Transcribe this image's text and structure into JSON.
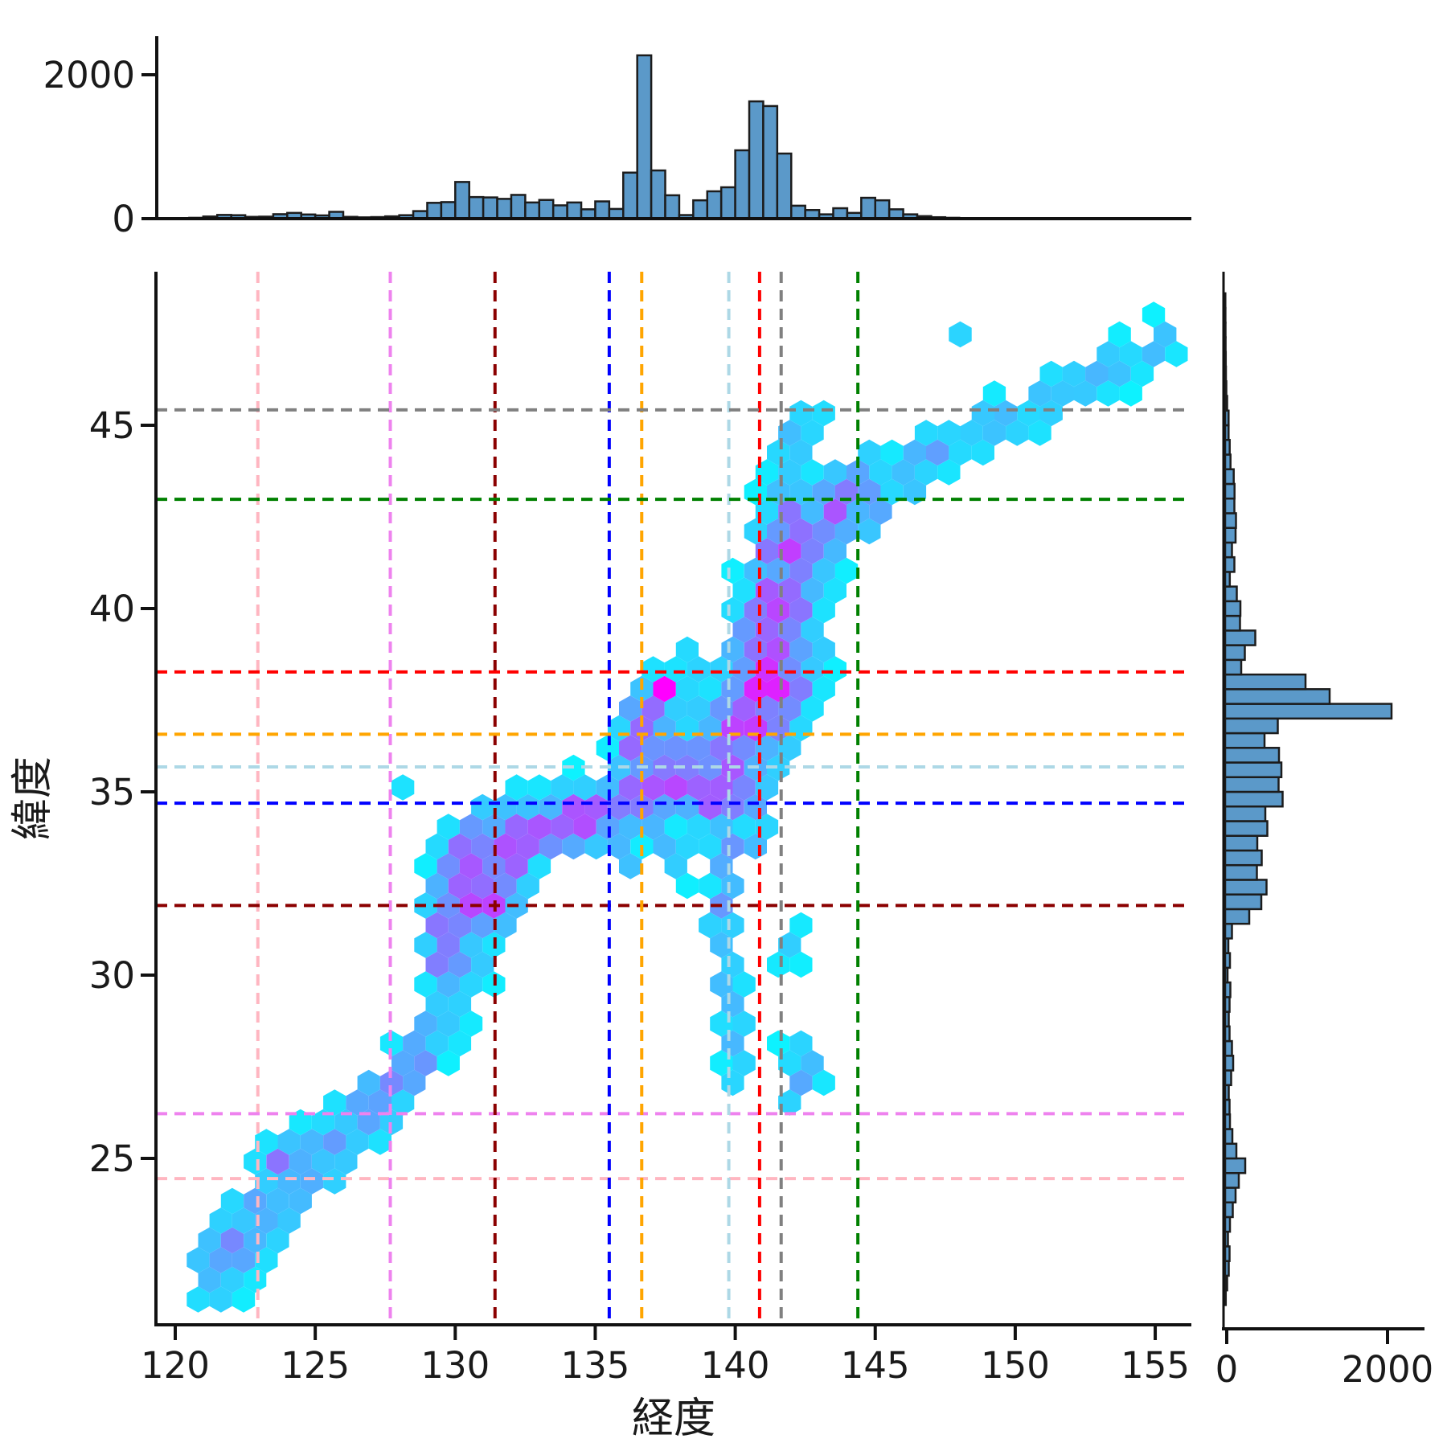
{
  "colors": {
    "hist_fill": "#5b99c9",
    "hist_edge": "#1c1c1c",
    "axis": "#111111",
    "text": "#1a1a1a",
    "colormap_start": "#00ffff",
    "colormap_end": "#ff00ff"
  },
  "chart_data": {
    "type": "hexbin",
    "xlabel": "経度",
    "ylabel": "緯度",
    "xlim": [
      119.31,
      156.29
    ],
    "ylim": [
      20.53,
      49.19
    ],
    "xticks": [
      120,
      125,
      130,
      135,
      140,
      145,
      150,
      155
    ],
    "yticks": [
      25,
      30,
      35,
      40,
      45
    ],
    "colormap": "cool",
    "hex_width_deg": 0.81,
    "grid": false,
    "legend": false,
    "density_model": {
      "comment_free": "segments:[x1,y1,x2,y2,halfwidth,amp] blobs:[x,y,rx,ry,amp] forced:[x,y,value]",
      "segments": [
        [
          121.4,
          21.9,
          124.6,
          24.7,
          1.0,
          0.38
        ],
        [
          124.6,
          24.7,
          128.4,
          27.3,
          0.95,
          0.34
        ],
        [
          128.4,
          27.3,
          130.4,
          30.4,
          0.9,
          0.34
        ],
        [
          129.6,
          31.2,
          130.7,
          33.6,
          0.95,
          0.6
        ],
        [
          130.8,
          31.6,
          132.2,
          33.4,
          0.9,
          0.6
        ],
        [
          131.9,
          33.8,
          135.7,
          34.5,
          0.95,
          0.58
        ],
        [
          135.7,
          34.5,
          137.8,
          35.3,
          1.0,
          0.6
        ],
        [
          137.2,
          35.2,
          139.7,
          35.7,
          1.05,
          0.62
        ],
        [
          139.5,
          35.3,
          141.5,
          38.4,
          1.45,
          0.7
        ],
        [
          141.0,
          38.4,
          142.1,
          41.5,
          1.3,
          0.58
        ],
        [
          141.5,
          41.5,
          144.5,
          43.1,
          1.1,
          0.48
        ],
        [
          144.7,
          43.3,
          155.2,
          47.2,
          0.8,
          0.22
        ],
        [
          139.9,
          34.3,
          139.5,
          30.8,
          0.6,
          0.3
        ],
        [
          139.6,
          30.8,
          140.1,
          27.4,
          0.55,
          0.26
        ],
        [
          141.9,
          43.5,
          142.5,
          45.1,
          0.85,
          0.24
        ],
        [
          136.6,
          36.4,
          137.2,
          37.5,
          0.85,
          0.55
        ]
      ],
      "blobs": [
        [
          124.2,
          24.7,
          1.2,
          0.7,
          0.55
        ],
        [
          129.6,
          30.6,
          0.6,
          0.6,
          0.55
        ],
        [
          130.9,
          32.3,
          0.9,
          1.0,
          0.68
        ],
        [
          132.1,
          33.9,
          0.8,
          0.55,
          0.62
        ],
        [
          134.0,
          34.3,
          1.2,
          0.55,
          0.62
        ],
        [
          136.4,
          35.2,
          0.9,
          0.6,
          0.62
        ],
        [
          137.0,
          37.3,
          0.8,
          0.6,
          0.6
        ],
        [
          139.9,
          36.0,
          0.8,
          0.7,
          0.68
        ],
        [
          140.9,
          37.6,
          1.0,
          1.1,
          0.78
        ],
        [
          141.4,
          39.0,
          0.8,
          0.9,
          0.66
        ],
        [
          141.1,
          40.1,
          0.7,
          0.8,
          0.58
        ],
        [
          142.0,
          42.9,
          0.9,
          0.6,
          0.5
        ],
        [
          142.3,
          27.3,
          0.75,
          0.95,
          0.28
        ],
        [
          127.0,
          35.85,
          0.5,
          0.3,
          0.15
        ],
        [
          128.6,
          35.2,
          0.7,
          0.5,
          0.16
        ],
        [
          138.4,
          38.4,
          0.9,
          0.9,
          0.2
        ],
        [
          146.6,
          44.0,
          1.3,
          0.9,
          0.24
        ],
        [
          148.3,
          47.6,
          0.5,
          0.5,
          0.2
        ],
        [
          137.8,
          33.2,
          0.8,
          0.7,
          0.3
        ],
        [
          136.2,
          33.1,
          0.9,
          0.5,
          0.26
        ],
        [
          142.0,
          30.8,
          0.5,
          0.9,
          0.2
        ],
        [
          140.7,
          33.7,
          0.7,
          0.6,
          0.3
        ],
        [
          146.0,
          43.6,
          0.8,
          0.6,
          0.33
        ],
        [
          147.3,
          44.2,
          0.7,
          0.5,
          0.3
        ],
        [
          153.8,
          47.0,
          0.8,
          0.5,
          0.26
        ],
        [
          150.0,
          45.5,
          0.8,
          0.5,
          0.22
        ]
      ],
      "forced": [
        [
          137.2,
          37.7,
          1.0
        ]
      ]
    },
    "marginal_top": {
      "type": "bar",
      "axis": "経度",
      "bin_start": 120.0,
      "bin_width": 0.5,
      "yticks": [
        0,
        2000
      ],
      "ymax": 2280,
      "counts": [
        0,
        12,
        30,
        52,
        48,
        25,
        28,
        62,
        80,
        58,
        45,
        95,
        25,
        18,
        22,
        32,
        48,
        105,
        220,
        230,
        510,
        300,
        295,
        275,
        330,
        225,
        260,
        185,
        225,
        130,
        240,
        135,
        640,
        2270,
        670,
        325,
        50,
        255,
        380,
        436,
        950,
        1630,
        1565,
        905,
        180,
        120,
        60,
        145,
        80,
        290,
        255,
        130,
        60,
        35,
        20,
        12,
        8,
        6,
        5,
        4,
        4,
        3,
        3,
        2,
        2,
        2,
        2,
        2,
        2,
        2,
        3,
        2
      ]
    },
    "marginal_right": {
      "type": "bar",
      "axis": "緯度",
      "bin_start": 21.0,
      "bin_width": 0.4,
      "xticks": [
        0,
        2000
      ],
      "xmax": 2280,
      "counts": [
        8,
        25,
        45,
        55,
        35,
        60,
        95,
        130,
        170,
        250,
        140,
        90,
        60,
        55,
        45,
        75,
        100,
        85,
        55,
        45,
        55,
        65,
        30,
        60,
        40,
        85,
        300,
        450,
        515,
        395,
        455,
        400,
        525,
        500,
        715,
        665,
        700,
        670,
        490,
        655,
        2070,
        1300,
        1000,
        200,
        245,
        375,
        185,
        190,
        145,
        58,
        115,
        85,
        130,
        135,
        115,
        117,
        107,
        67,
        57,
        43,
        43,
        25,
        15,
        10,
        8,
        6,
        5,
        4,
        3
      ]
    },
    "reference_lines": [
      {
        "color": "#FFB6C1",
        "x": 122.95,
        "y": 24.45
      },
      {
        "color": "#EE82EE",
        "x": 127.68,
        "y": 26.22
      },
      {
        "color": "#8B0000",
        "x": 131.42,
        "y": 31.9
      },
      {
        "color": "#0000FF",
        "x": 135.5,
        "y": 34.69
      },
      {
        "color": "#FFA500",
        "x": 136.66,
        "y": 36.57
      },
      {
        "color": "#ADD8E6",
        "x": 139.77,
        "y": 35.68
      },
      {
        "color": "#FF0000",
        "x": 140.87,
        "y": 38.27
      },
      {
        "color": "#808080",
        "x": 141.64,
        "y": 45.42
      },
      {
        "color": "#008000",
        "x": 144.38,
        "y": 42.98
      }
    ]
  }
}
